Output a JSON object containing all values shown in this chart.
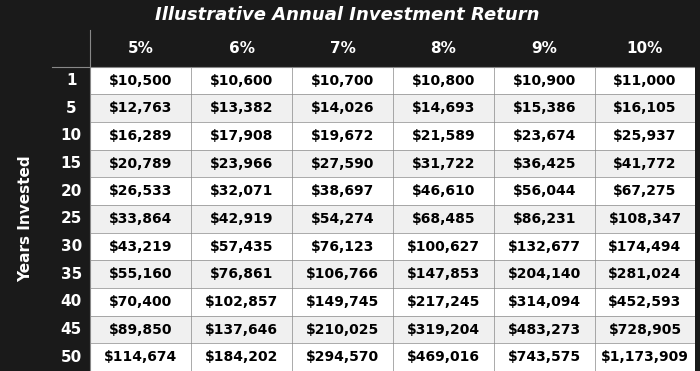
{
  "title": "Illustrative Annual Investment Return",
  "col_headers": [
    "5%",
    "6%",
    "7%",
    "8%",
    "9%",
    "10%"
  ],
  "row_headers": [
    "1",
    "5",
    "10",
    "15",
    "20",
    "25",
    "30",
    "35",
    "40",
    "45",
    "50"
  ],
  "row_label": "Years Invested",
  "values": [
    [
      "$10,500",
      "$10,600",
      "$10,700",
      "$10,800",
      "$10,900",
      "$11,000"
    ],
    [
      "$12,763",
      "$13,382",
      "$14,026",
      "$14,693",
      "$15,386",
      "$16,105"
    ],
    [
      "$16,289",
      "$17,908",
      "$19,672",
      "$21,589",
      "$23,674",
      "$25,937"
    ],
    [
      "$20,789",
      "$23,966",
      "$27,590",
      "$31,722",
      "$36,425",
      "$41,772"
    ],
    [
      "$26,533",
      "$32,071",
      "$38,697",
      "$46,610",
      "$56,044",
      "$67,275"
    ],
    [
      "$33,864",
      "$42,919",
      "$54,274",
      "$68,485",
      "$86,231",
      "$108,347"
    ],
    [
      "$43,219",
      "$57,435",
      "$76,123",
      "$100,627",
      "$132,677",
      "$174,494"
    ],
    [
      "$55,160",
      "$76,861",
      "$106,766",
      "$147,853",
      "$204,140",
      "$281,024"
    ],
    [
      "$70,400",
      "$102,857",
      "$149,745",
      "$217,245",
      "$314,094",
      "$452,593"
    ],
    [
      "$89,850",
      "$137,646",
      "$210,025",
      "$319,204",
      "$483,273",
      "$728,905"
    ],
    [
      "$114,674",
      "$184,202",
      "$294,570",
      "$469,016",
      "$743,575",
      "$1,173,909"
    ]
  ],
  "bg_color_dark": "#1a1a1a",
  "bg_color_header": "#1a1a1a",
  "bg_color_light": "#f0f0f0",
  "bg_color_white": "#ffffff",
  "text_color_light": "#ffffff",
  "text_color_dark": "#000000",
  "title_fontsize": 13,
  "header_fontsize": 11,
  "cell_fontsize": 10,
  "row_label_fontsize": 11
}
